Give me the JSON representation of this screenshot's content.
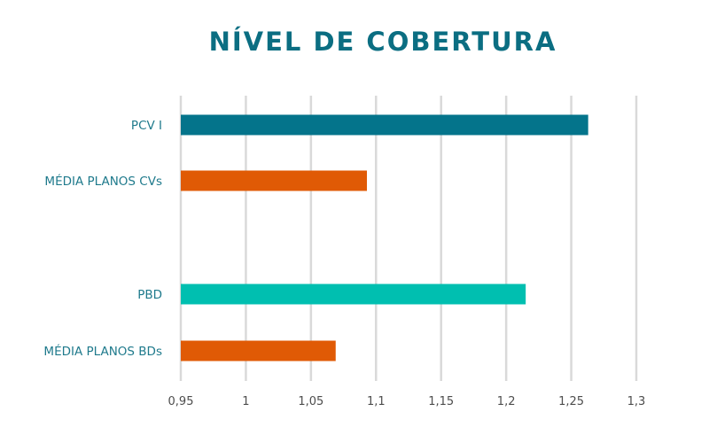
{
  "chart_data": {
    "type": "bar",
    "orientation": "horizontal",
    "title": "NÍVEL DE COBERTURA",
    "categories": [
      "PCV I",
      "MÉDIA PLANOS CVs",
      "PBD",
      "MÉDIA PLANOS BDs"
    ],
    "values": [
      1.263,
      1.093,
      1.215,
      1.069
    ],
    "colors": [
      "#04748b",
      "#e05a05",
      "#00bfb0",
      "#e05a05"
    ],
    "xlim": [
      0.95,
      1.3
    ],
    "xticks": [
      0.95,
      1,
      1.05,
      1.1,
      1.15,
      1.2,
      1.25,
      1.3
    ],
    "xtick_labels": [
      "0,95",
      "1",
      "1,05",
      "1,1",
      "1,15",
      "1,2",
      "1,25",
      "1,3"
    ],
    "grid": true,
    "legend": "none",
    "xlabel": "",
    "ylabel": ""
  }
}
